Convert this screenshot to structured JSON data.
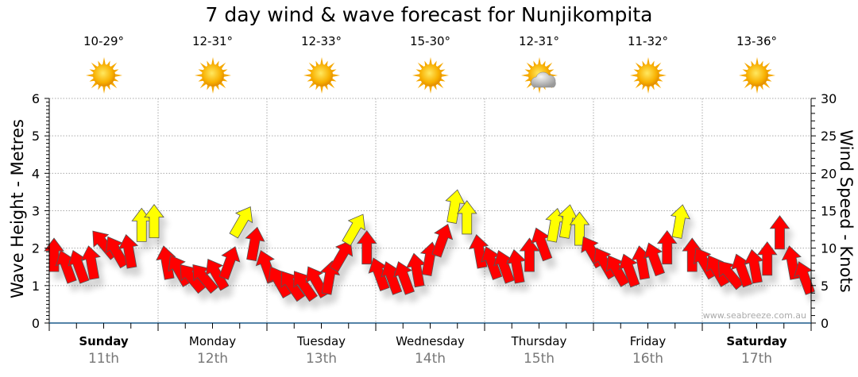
{
  "title": "7 day wind & wave forecast for Nunjikompita",
  "days": [
    {
      "name": "Sunday",
      "date": "11th",
      "temp": "10-29°",
      "weather": "sunny",
      "bold": true
    },
    {
      "name": "Monday",
      "date": "12th",
      "temp": "12-31°",
      "weather": "sunny",
      "bold": false
    },
    {
      "name": "Tuesday",
      "date": "13th",
      "temp": "12-33°",
      "weather": "sunny",
      "bold": false
    },
    {
      "name": "Wednesday",
      "date": "14th",
      "temp": "15-30°",
      "weather": "sunny",
      "bold": false
    },
    {
      "name": "Thursday",
      "date": "15th",
      "temp": "12-31°",
      "weather": "partly-cloudy",
      "bold": false
    },
    {
      "name": "Friday",
      "date": "16th",
      "temp": "11-32°",
      "weather": "sunny",
      "bold": false
    },
    {
      "name": "Saturday",
      "date": "17th",
      "temp": "13-36°",
      "weather": "sunny",
      "bold": true
    }
  ],
  "watermark": "www.seabreeze.com.au",
  "colors": {
    "strong_wind": "#ffff00",
    "wind": "#ff0000",
    "axis": "#1a5a8a"
  },
  "chart_data": {
    "type": "scatter",
    "title": "7 day wind & wave forecast for Nunjikompita",
    "ylabel": "Wave Height - Metres",
    "y2label": "Wind Speed - Knots",
    "ylim": [
      0,
      6
    ],
    "y2lim": [
      0,
      30
    ],
    "yticks": [
      "0",
      "1",
      "2",
      "3",
      "4",
      "5",
      "6"
    ],
    "y2ticks": [
      "0",
      "5",
      "10",
      "15",
      "20",
      "25",
      "30"
    ],
    "grid": true,
    "yellow_threshold_knots": 12.5,
    "wind_speed_knots": [
      9,
      7.5,
      7.5,
      8,
      10.5,
      9.5,
      9.5,
      13,
      13.5,
      8,
      7,
      6,
      6,
      6.5,
      8,
      13.5,
      10.5,
      7.5,
      5.5,
      5,
      5,
      5.5,
      6,
      9,
      12.5,
      10,
      6.5,
      6,
      6,
      7,
      8.5,
      11,
      15.5,
      14,
      9.5,
      8,
      7.5,
      7.5,
      9,
      10.5,
      13,
      13.5,
      12.5,
      9.5,
      8,
      7,
      7,
      8,
      8.5,
      10,
      13.5,
      9,
      8,
      7,
      6.5,
      7,
      7.5,
      8.5,
      12,
      8,
      6
    ],
    "wind_direction_deg": [
      0,
      -20,
      -20,
      -10,
      -40,
      -30,
      -10,
      0,
      0,
      -10,
      -30,
      -40,
      -40,
      -30,
      20,
      30,
      10,
      -20,
      -30,
      -35,
      -35,
      -30,
      10,
      30,
      30,
      0,
      -20,
      -20,
      -20,
      -10,
      10,
      20,
      10,
      0,
      -10,
      -20,
      -20,
      -10,
      0,
      -20,
      10,
      10,
      0,
      -30,
      -30,
      -30,
      -20,
      -10,
      -20,
      0,
      10,
      0,
      -30,
      -30,
      -40,
      -20,
      -10,
      0,
      0,
      -10,
      -20
    ]
  }
}
